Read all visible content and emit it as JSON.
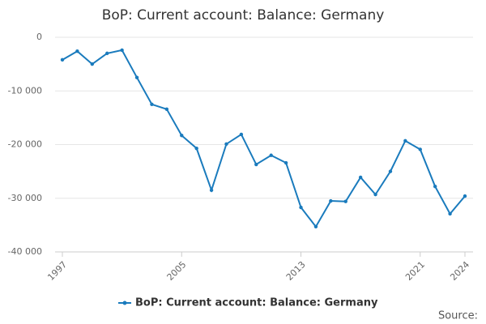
{
  "chart_data": {
    "type": "line",
    "title": "BoP: Current account: Balance: Germany",
    "x": [
      1997,
      1998,
      1999,
      2000,
      2001,
      2002,
      2003,
      2004,
      2005,
      2006,
      2007,
      2008,
      2009,
      2010,
      2011,
      2012,
      2013,
      2014,
      2015,
      2016,
      2017,
      2018,
      2019,
      2020,
      2021,
      2022,
      2023,
      2024
    ],
    "series": [
      {
        "name": "BoP: Current account: Balance: Germany",
        "color": "#1a7bbd",
        "values": [
          -4200,
          -2600,
          -5000,
          -3000,
          -2400,
          -7500,
          -12500,
          -13400,
          -18300,
          -20700,
          -28500,
          -19900,
          -18100,
          -23700,
          -22000,
          -23400,
          -31700,
          -35300,
          -30500,
          -30600,
          -26100,
          -29300,
          -25000,
          -19300,
          -20900,
          -27800,
          -32900,
          -29600
        ]
      }
    ],
    "xlim": [
      1997,
      2024
    ],
    "xticks": [
      1997,
      2005,
      2013,
      2021,
      2024
    ],
    "ylim": [
      -40000,
      0
    ],
    "yticks": [
      {
        "value": -40000,
        "label": "-40 000"
      },
      {
        "value": -30000,
        "label": "-30 000"
      },
      {
        "value": -20000,
        "label": "-20 000"
      },
      {
        "value": -10000,
        "label": "-10 000"
      },
      0
    ],
    "grid": true,
    "source": "Source:"
  }
}
